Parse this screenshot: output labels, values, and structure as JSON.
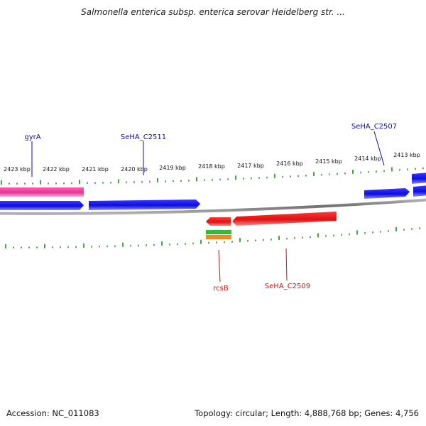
{
  "title": "Salmonella enterica subsp. enterica serovar Heidelberg str. ...",
  "ticks": [
    "2423 kbp",
    "2422 kbp",
    "2421 kbp",
    "2420 kbp",
    "2419 kbp",
    "2418 kbp",
    "2417 kbp",
    "2416 kbp",
    "2415 kbp",
    "2414 kbp",
    "2413 kbp"
  ],
  "genes": {
    "gyrA": "gyrA",
    "SeHA_C2511": "SeHA_C2511",
    "SeHA_C2507": "SeHA_C2507",
    "rcsB": "rcsB",
    "SeHA_C2509": "SeHA_C2509"
  },
  "footer": {
    "accession": "Accession: NC_011083",
    "summary": "Topology: circular; Length: 4,888,768 bp; Genes: 4,756"
  },
  "colors": {
    "forward_cds": "#1010e0",
    "reverse_cds": "#e01010",
    "rrna_like": "#e8359a",
    "tick": "#1a8a1a",
    "backbone": "#8a8a8a",
    "green_feature": "#33bb33",
    "orange_feature": "#f08a1a"
  }
}
